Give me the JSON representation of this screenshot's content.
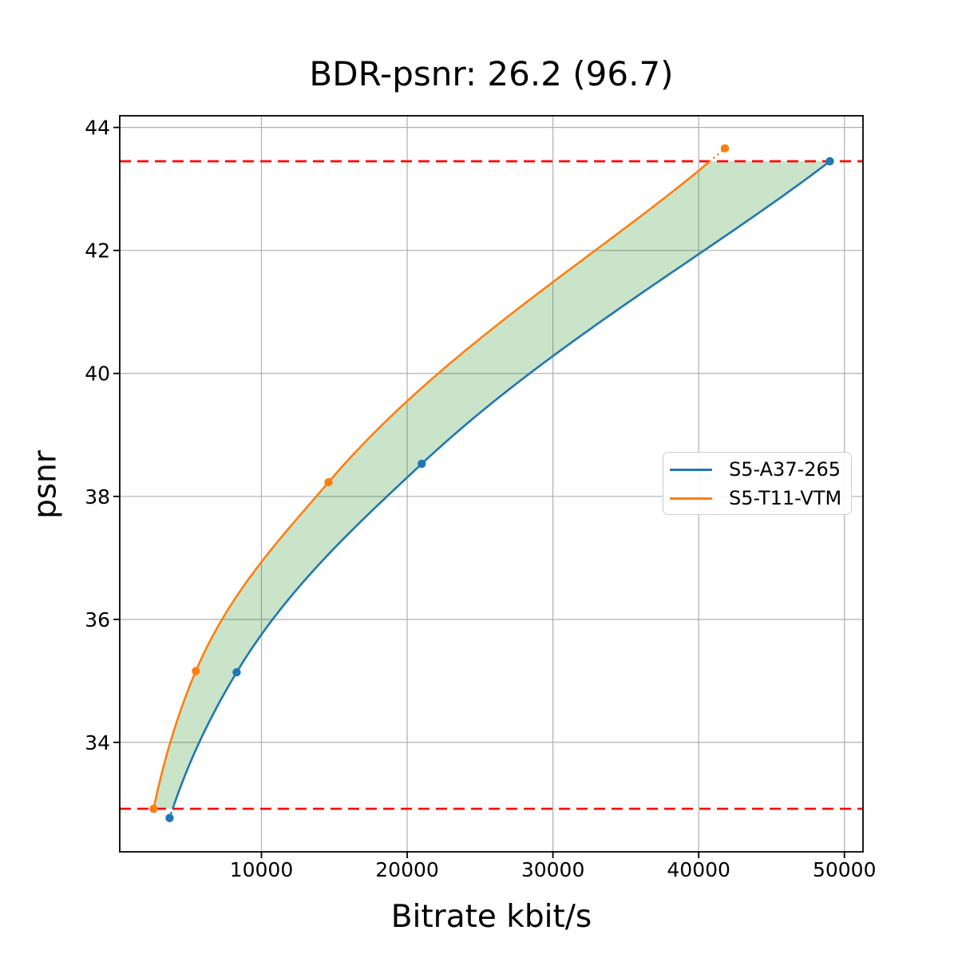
{
  "chart_data": {
    "type": "line",
    "title": "BDR-psnr: 26.2 (96.7)",
    "xlabel": "Bitrate kbit/s",
    "ylabel": "psnr",
    "xlim": [
      279,
      51274
    ],
    "ylim": [
      32.22,
      44.19
    ],
    "xticks": {
      "values": [
        10000,
        20000,
        30000,
        40000,
        50000
      ],
      "labels": [
        "10000",
        "20000",
        "30000",
        "40000",
        "50000"
      ]
    },
    "yticks": {
      "values": [
        34,
        36,
        38,
        40,
        42,
        44
      ],
      "labels": [
        "34",
        "36",
        "38",
        "40",
        "42",
        "44"
      ]
    },
    "grid": true,
    "grid_color": "#b0b0b0",
    "series": [
      {
        "name": "S5-A37-265",
        "color": "#1f77b4",
        "points": [
          [
            3700,
            32.77
          ],
          [
            8300,
            35.14
          ],
          [
            21000,
            38.53
          ],
          [
            49000,
            43.45
          ]
        ]
      },
      {
        "name": "S5-T11-VTM",
        "color": "#ff7f0e",
        "points": [
          [
            2600,
            32.92
          ],
          [
            5500,
            35.16
          ],
          [
            14600,
            38.23
          ],
          [
            41800,
            43.66
          ]
        ]
      }
    ],
    "overlap_region": {
      "psnr_low": 32.92,
      "psnr_high": 43.45,
      "boundary_color": "#ff0000",
      "boundary_style": "dashed",
      "fill_color": "#008000",
      "fill_opacity": 0.21
    },
    "legend": {
      "position": "center right",
      "entries": [
        "S5-A37-265",
        "S5-T11-VTM"
      ]
    },
    "bdr_psnr": "26.2",
    "bdr_secondary": "96.7",
    "interpolation": "pchip-log-bitrate"
  }
}
